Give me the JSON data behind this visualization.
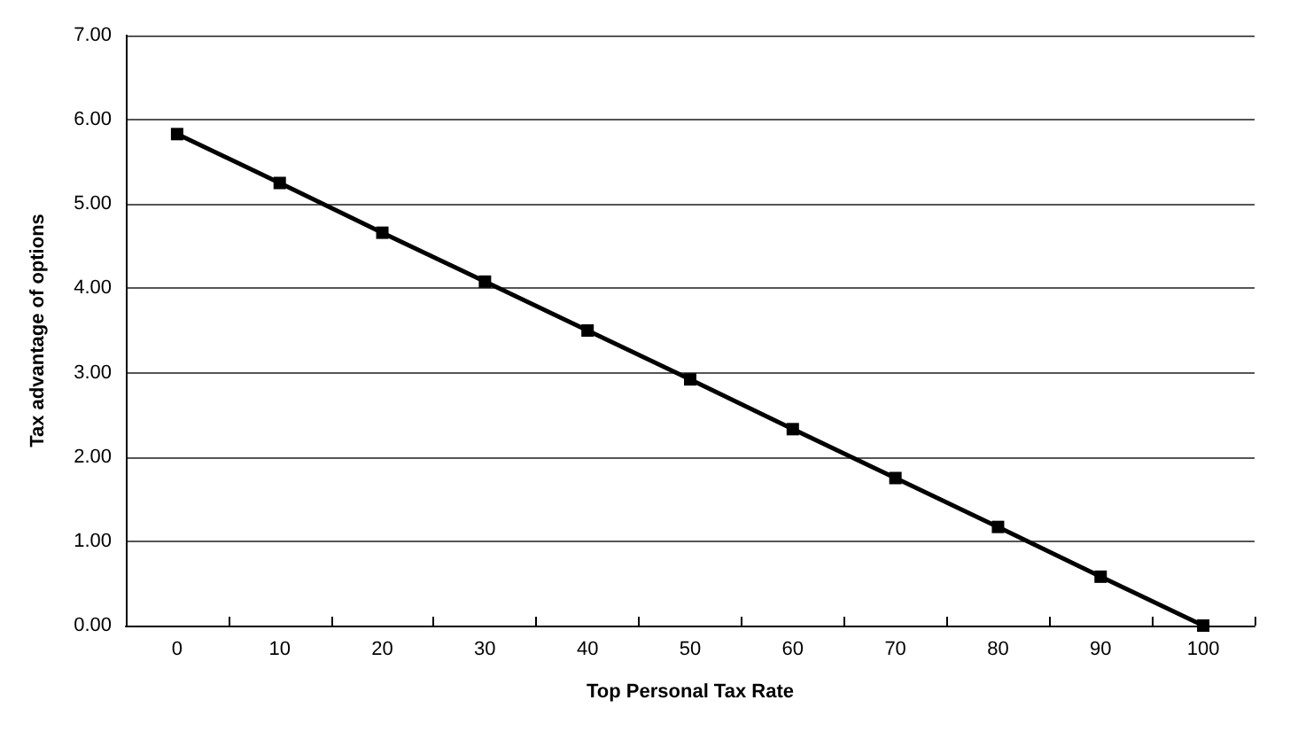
{
  "chart_data": {
    "type": "line",
    "xlabel": "Top Personal Tax Rate",
    "ylabel": "Tax advantage of options",
    "categories": [
      "0",
      "10",
      "20",
      "30",
      "40",
      "50",
      "60",
      "70",
      "80",
      "90",
      "100"
    ],
    "series": [
      {
        "color": "#000000",
        "values": [
          5.83,
          5.25,
          4.66,
          4.08,
          3.5,
          2.92,
          2.33,
          1.75,
          1.17,
          0.58,
          0
        ]
      }
    ],
    "ylim": [
      0,
      7
    ],
    "yticks": [
      {
        "value": 0,
        "label": "0.00"
      },
      {
        "value": 1,
        "label": "1.00"
      },
      {
        "value": 2,
        "label": "2.00"
      },
      {
        "value": 3,
        "label": "3.00"
      },
      {
        "value": 4,
        "label": "4.00"
      },
      {
        "value": 5,
        "label": "5.00"
      },
      {
        "value": 6,
        "label": "6.00"
      },
      {
        "value": 7,
        "label": "7.00"
      }
    ],
    "grid": "y",
    "marker": "square",
    "line_style": "solid"
  }
}
